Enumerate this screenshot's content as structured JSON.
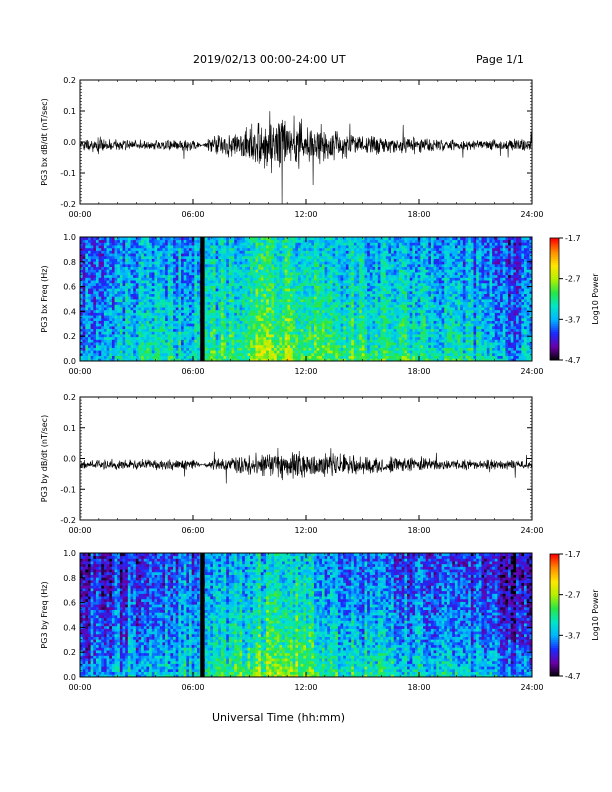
{
  "header": {
    "date_range": "2019/02/13  00:00-24:00 UT",
    "page": "Page 1/1"
  },
  "footer": {
    "xlabel": "Universal Time (hh:mm)"
  },
  "colors": {
    "trace": "#000000",
    "axis": "#000000",
    "data_gap": "#000000"
  },
  "colorbar": {
    "title": "Log10 Power",
    "ticks": [
      "-1.7",
      "-2.7",
      "-3.7",
      "-4.7"
    ],
    "range": [
      -4.7,
      -1.7
    ],
    "colormap": [
      "#000000",
      "#6a00a8",
      "#1a2bff",
      "#00b4ff",
      "#00e6c8",
      "#28e646",
      "#b4f000",
      "#ffe600",
      "#ff8c00",
      "#ff0000"
    ]
  },
  "chart_data": [
    {
      "type": "line",
      "title": "",
      "ylabel": "PG3 bx dB/dt (nT/sec)",
      "xlabel": "",
      "xlim": [
        "00:00",
        "24:00"
      ],
      "xticks": [
        "00:00",
        "06:00",
        "12:00",
        "18:00",
        "24:00"
      ],
      "ylim": [
        -0.2,
        0.2
      ],
      "yticks": [
        "-0.2",
        "-0.1",
        "0.0",
        "0.1",
        "0.2"
      ],
      "series": [
        {
          "x_hours": [
            0,
            1,
            2,
            3,
            4,
            5,
            6,
            6.5,
            7,
            8,
            9,
            10,
            10.5,
            11,
            11.5,
            12,
            13,
            14,
            15,
            16,
            17,
            18,
            19,
            20,
            21,
            22,
            23,
            24
          ],
          "baseline": -0.01,
          "amplitude": [
            0.02,
            0.03,
            0.02,
            0.02,
            0.02,
            0.02,
            0.025,
            0,
            0.04,
            0.05,
            0.07,
            0.09,
            0.11,
            0.12,
            0.1,
            0.08,
            0.06,
            0.05,
            0.04,
            0.035,
            0.03,
            0.03,
            0.025,
            0.02,
            0.02,
            0.02,
            0.025,
            0.02
          ]
        }
      ]
    },
    {
      "type": "heatmap",
      "title": "",
      "ylabel": "PG3 bx Freq (Hz)",
      "xlabel": "",
      "xlim": [
        "00:00",
        "24:00"
      ],
      "xticks": [
        "00:00",
        "06:00",
        "12:00",
        "18:00",
        "24:00"
      ],
      "ylim": [
        0.0,
        1.0
      ],
      "yticks": [
        "0.0",
        "0.2",
        "0.4",
        "0.6",
        "0.8",
        "1.0"
      ],
      "data_gap_hours": 6.5,
      "log10_power_profile": {
        "x_hours": [
          0,
          1,
          2,
          3,
          4,
          5,
          6,
          7,
          8,
          9,
          10,
          11,
          12,
          13,
          14,
          15,
          16,
          17,
          18,
          19,
          20,
          21,
          22,
          23,
          24
        ],
        "low_freq": [
          -3.5,
          -3.7,
          -3.4,
          -3.3,
          -3.3,
          -3.3,
          -3.2,
          -3.0,
          -2.9,
          -2.7,
          -2.5,
          -2.5,
          -2.7,
          -2.8,
          -2.9,
          -3.0,
          -3.0,
          -3.1,
          -3.1,
          -3.2,
          -3.2,
          -3.3,
          -3.3,
          -3.6,
          -3.5
        ],
        "high_freq": [
          -3.9,
          -4.1,
          -3.8,
          -3.8,
          -3.8,
          -3.8,
          -3.7,
          -3.6,
          -3.5,
          -3.4,
          -3.3,
          -3.3,
          -3.4,
          -3.5,
          -3.6,
          -3.6,
          -3.7,
          -3.7,
          -3.8,
          -3.8,
          -3.8,
          -3.9,
          -3.9,
          -4.1,
          -4.0
        ]
      }
    },
    {
      "type": "line",
      "title": "",
      "ylabel": "PG3 by dB/dt (nT/sec)",
      "xlabel": "",
      "xlim": [
        "00:00",
        "24:00"
      ],
      "xticks": [
        "00:00",
        "06:00",
        "12:00",
        "18:00",
        "24:00"
      ],
      "ylim": [
        -0.2,
        0.2
      ],
      "yticks": [
        "-0.2",
        "-0.1",
        "0.0",
        "0.1",
        "0.2"
      ],
      "series": [
        {
          "x_hours": [
            0,
            1,
            2,
            3,
            4,
            5,
            6,
            6.5,
            7,
            8,
            9,
            10,
            10.5,
            11,
            11.5,
            12,
            13,
            14,
            15,
            16,
            17,
            18,
            19,
            20,
            21,
            22,
            23,
            24
          ],
          "baseline": -0.02,
          "amplitude": [
            0.015,
            0.02,
            0.02,
            0.02,
            0.02,
            0.02,
            0.02,
            0,
            0.025,
            0.03,
            0.04,
            0.05,
            0.06,
            0.06,
            0.055,
            0.05,
            0.045,
            0.04,
            0.035,
            0.03,
            0.03,
            0.025,
            0.02,
            0.02,
            0.02,
            0.02,
            0.02,
            0.015
          ]
        }
      ]
    },
    {
      "type": "heatmap",
      "title": "",
      "ylabel": "PG3 by Freq (Hz)",
      "xlabel": "",
      "xlim": [
        "00:00",
        "24:00"
      ],
      "xticks": [
        "00:00",
        "06:00",
        "12:00",
        "18:00",
        "24:00"
      ],
      "ylim": [
        0.0,
        1.0
      ],
      "yticks": [
        "0.0",
        "0.2",
        "0.4",
        "0.6",
        "0.8",
        "1.0"
      ],
      "data_gap_hours": 6.5,
      "log10_power_profile": {
        "x_hours": [
          0,
          1,
          2,
          3,
          4,
          5,
          6,
          7,
          8,
          9,
          10,
          11,
          12,
          13,
          14,
          15,
          16,
          17,
          18,
          19,
          20,
          21,
          22,
          23,
          24
        ],
        "low_freq": [
          -3.6,
          -3.7,
          -3.5,
          -3.4,
          -3.4,
          -3.4,
          -3.3,
          -3.1,
          -3.0,
          -2.8,
          -2.6,
          -2.6,
          -2.8,
          -2.9,
          -3.0,
          -3.1,
          -3.1,
          -3.2,
          -3.2,
          -3.3,
          -3.3,
          -3.4,
          -3.4,
          -3.7,
          -3.6
        ],
        "high_freq": [
          -4.2,
          -4.3,
          -4.1,
          -4.1,
          -4.0,
          -4.0,
          -3.9,
          -3.8,
          -3.7,
          -3.6,
          -3.5,
          -3.5,
          -3.6,
          -3.7,
          -3.8,
          -3.9,
          -3.9,
          -4.0,
          -4.0,
          -4.0,
          -4.1,
          -4.1,
          -4.2,
          -4.4,
          -4.3
        ]
      }
    }
  ]
}
